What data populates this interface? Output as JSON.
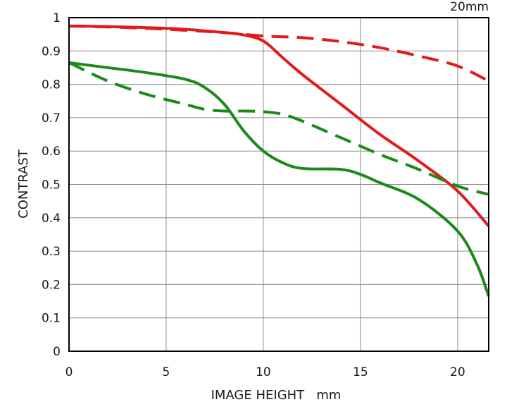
{
  "chart_data": {
    "type": "line",
    "corner_label": "20mm",
    "xlabel": "IMAGE HEIGHT   mm",
    "ylabel": "CONTRAST",
    "xlim": [
      0,
      21.6
    ],
    "ylim": [
      0,
      1
    ],
    "x_ticks": [
      0,
      5,
      10,
      15,
      20
    ],
    "x_tick_labels": [
      "0",
      "5",
      "10",
      "15",
      "20"
    ],
    "y_ticks": [
      0,
      0.1,
      0.2,
      0.3,
      0.4,
      0.5,
      0.6,
      0.7,
      0.8,
      0.9,
      1
    ],
    "y_tick_labels": [
      "0",
      "0.1",
      "0.2",
      "0.3",
      "0.4",
      "0.5",
      "0.6",
      "0.7",
      "0.8",
      "0.9",
      "1"
    ],
    "grid": true,
    "legend": "none",
    "series": [
      {
        "color": "#e31a1c",
        "dash": "solid",
        "x": [
          0,
          2,
          4,
          6,
          8,
          9,
          10,
          11,
          12,
          14,
          16,
          18,
          20,
          21.6
        ],
        "y": [
          0.975,
          0.973,
          0.97,
          0.965,
          0.955,
          0.948,
          0.93,
          0.88,
          0.83,
          0.74,
          0.65,
          0.57,
          0.48,
          0.375
        ]
      },
      {
        "color": "#e31a1c",
        "dash": "dashed",
        "x": [
          0,
          2,
          4,
          6,
          8,
          10,
          12,
          14,
          16,
          18,
          20,
          21.6
        ],
        "y": [
          0.975,
          0.972,
          0.968,
          0.962,
          0.955,
          0.945,
          0.94,
          0.928,
          0.91,
          0.885,
          0.855,
          0.81
        ]
      },
      {
        "color": "#1a8a1a",
        "dash": "solid",
        "x": [
          0,
          2,
          4,
          6,
          7,
          8,
          9,
          10,
          11,
          12,
          14,
          15,
          16,
          18,
          20,
          21,
          21.6
        ],
        "y": [
          0.865,
          0.85,
          0.835,
          0.815,
          0.79,
          0.74,
          0.66,
          0.6,
          0.565,
          0.548,
          0.545,
          0.53,
          0.505,
          0.455,
          0.36,
          0.26,
          0.165
        ]
      },
      {
        "color": "#1a8a1a",
        "dash": "dashed",
        "x": [
          0,
          2,
          4,
          6,
          7,
          8,
          9,
          10,
          11,
          12,
          14,
          16,
          18,
          20,
          21.6
        ],
        "y": [
          0.865,
          0.81,
          0.77,
          0.74,
          0.725,
          0.72,
          0.72,
          0.718,
          0.71,
          0.69,
          0.64,
          0.59,
          0.545,
          0.495,
          0.47
        ]
      }
    ]
  }
}
